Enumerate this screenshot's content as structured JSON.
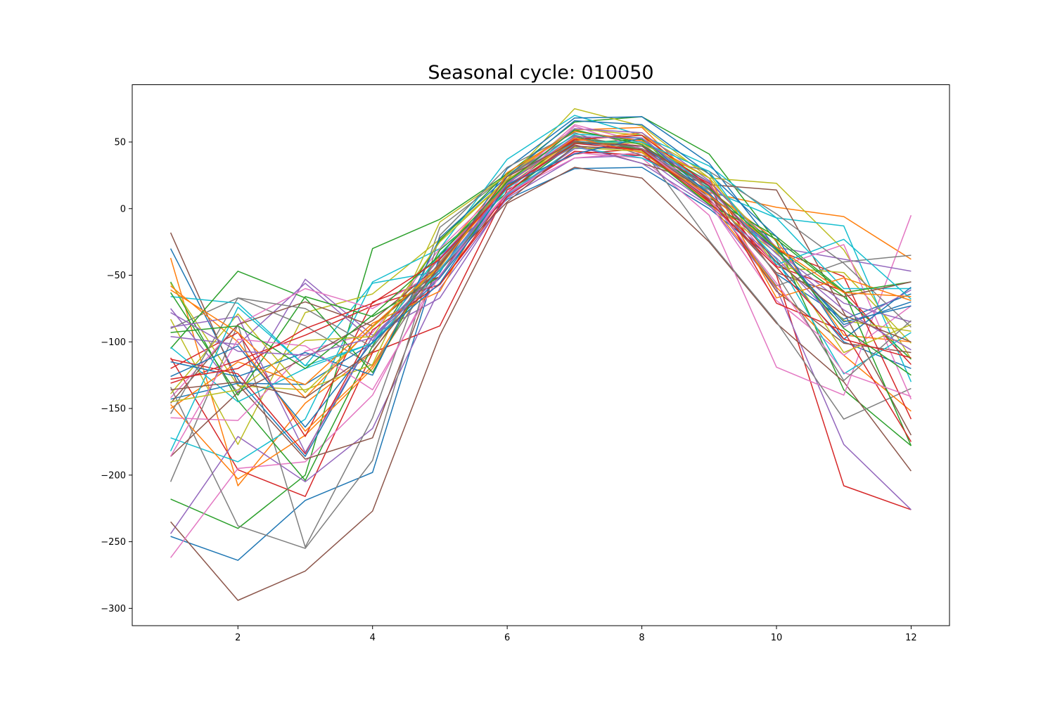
{
  "chart_data": {
    "type": "line",
    "title": "Seasonal cycle: 010050",
    "xlabel": "",
    "ylabel": "",
    "xlim": [
      0.43,
      12.57
    ],
    "ylim": [
      -313,
      93
    ],
    "x_ticks": [
      2,
      4,
      6,
      8,
      10,
      12
    ],
    "y_ticks": [
      50,
      0,
      -50,
      -100,
      -150,
      -200,
      -250,
      -300
    ],
    "x_tick_labels": [
      "2",
      "4",
      "6",
      "8",
      "10",
      "12"
    ],
    "y_tick_labels": [
      "50",
      "0",
      "−50",
      "−100",
      "−150",
      "−200",
      "−250",
      "−300"
    ],
    "grid": false,
    "legend": "none",
    "x": [
      1,
      2,
      3,
      4,
      5,
      6,
      7,
      8,
      9,
      10,
      11,
      12
    ],
    "colors": [
      "#1f77b4",
      "#ff7f0e",
      "#2ca02c",
      "#d62728",
      "#9467bd",
      "#8c564b",
      "#e377c2",
      "#7f7f7f",
      "#bcbd22",
      "#17becf"
    ],
    "series": [
      {
        "values": [
          -246,
          -264,
          -219,
          -198,
          -35,
          7,
          30,
          31,
          0,
          -40,
          -100,
          -120
        ]
      },
      {
        "values": [
          -37,
          -208,
          -146,
          -108,
          -35,
          24,
          59,
          61,
          12,
          1,
          -6,
          -38
        ]
      },
      {
        "values": [
          -218,
          -240,
          -200,
          -30,
          -8,
          26,
          65,
          69,
          41,
          -25,
          -136,
          -178
        ]
      },
      {
        "values": [
          -112,
          -196,
          -216,
          -108,
          -88,
          14,
          41,
          45,
          19,
          -50,
          -208,
          -226
        ]
      },
      {
        "values": [
          -244,
          -171,
          -205,
          -165,
          -60,
          8,
          38,
          40,
          3,
          -60,
          -177,
          -226
        ]
      },
      {
        "values": [
          -235,
          -294,
          -272,
          -227,
          -95,
          4,
          31,
          23,
          -25,
          -86,
          -130,
          -197
        ]
      },
      {
        "values": [
          -262,
          -195,
          -190,
          -140,
          -45,
          10,
          42,
          38,
          -5,
          -119,
          -140,
          -5
        ]
      },
      {
        "values": [
          -205,
          -87,
          -254,
          -157,
          -14,
          25,
          55,
          45,
          -24,
          -85,
          -158,
          -135
        ]
      },
      {
        "values": [
          -83,
          -177,
          -78,
          -64,
          -23,
          22,
          75,
          62,
          23,
          19,
          -31,
          -113
        ]
      },
      {
        "values": [
          -172,
          -190,
          -158,
          -55,
          -30,
          37,
          70,
          55,
          32,
          -7,
          -13,
          -130
        ]
      },
      {
        "values": [
          -30,
          -128,
          -186,
          -96,
          -48,
          30,
          68,
          69,
          34,
          -30,
          -87,
          -70
        ]
      },
      {
        "values": [
          -147,
          -203,
          -170,
          -120,
          -41,
          17,
          52,
          55,
          5,
          -59,
          -110,
          -152
        ]
      },
      {
        "values": [
          -55,
          -144,
          -204,
          -103,
          -24,
          27,
          58,
          50,
          20,
          -30,
          -66,
          -113
        ]
      },
      {
        "values": [
          -120,
          -93,
          -171,
          -70,
          -51,
          22,
          52,
          47,
          6,
          -31,
          -51,
          -158
        ]
      },
      {
        "values": [
          -75,
          -138,
          -53,
          -95,
          -67,
          10,
          45,
          47,
          20,
          -29,
          -38,
          -47
        ]
      },
      {
        "values": [
          -18,
          -132,
          -188,
          -172,
          -38,
          16,
          48,
          34,
          18,
          14,
          -78,
          -170
        ]
      },
      {
        "values": [
          -157,
          -159,
          -107,
          -93,
          -30,
          19,
          63,
          50,
          4,
          -69,
          -110,
          -73
        ]
      },
      {
        "values": [
          -90,
          -67,
          -88,
          -118,
          -44,
          24,
          55,
          45,
          8,
          -58,
          -40,
          -35
        ]
      },
      {
        "values": [
          -56,
          -133,
          -136,
          -117,
          -10,
          25,
          60,
          55,
          26,
          -44,
          -48,
          -101
        ]
      },
      {
        "values": [
          -66,
          -71,
          -118,
          -56,
          -47,
          11,
          46,
          38,
          14,
          -7,
          -60,
          -60
        ]
      },
      {
        "values": [
          -143,
          -131,
          -132,
          -101,
          -52,
          12,
          49,
          47,
          12,
          -49,
          -83,
          -64
        ]
      },
      {
        "values": [
          -58,
          -100,
          -167,
          -118,
          -34,
          15,
          51,
          57,
          14,
          -24,
          -95,
          -100
        ]
      },
      {
        "values": [
          -105,
          -47,
          -67,
          -123,
          -31,
          12,
          49,
          52,
          8,
          -21,
          -62,
          -178
        ]
      },
      {
        "values": [
          -131,
          -114,
          -95,
          -73,
          -57,
          9,
          43,
          40,
          10,
          -43,
          -62,
          -117
        ]
      },
      {
        "values": [
          -96,
          -102,
          -56,
          -99,
          -37,
          18,
          60,
          57,
          21,
          -32,
          -71,
          -85
        ]
      },
      {
        "values": [
          -186,
          -138,
          -112,
          -84,
          -42,
          21,
          51,
          44,
          11,
          -62,
          -101,
          -108
        ]
      },
      {
        "values": [
          -142,
          -87,
          -60,
          -75,
          -46,
          12,
          38,
          42,
          18,
          -44,
          -27,
          -143
        ]
      },
      {
        "values": [
          -134,
          -238,
          -255,
          -189,
          -20,
          31,
          57,
          40,
          28,
          -4,
          -41,
          -89
        ]
      },
      {
        "values": [
          -139,
          -79,
          -138,
          -89,
          -44,
          22,
          46,
          43,
          4,
          -33,
          -84,
          -92
        ]
      },
      {
        "values": [
          -104,
          -145,
          -120,
          -101,
          -34,
          19,
          56,
          53,
          16,
          -38,
          -124,
          -93
        ]
      },
      {
        "values": [
          -115,
          -126,
          -108,
          -125,
          -22,
          24,
          66,
          63,
          26,
          -21,
          -98,
          -59
        ]
      },
      {
        "values": [
          -150,
          -115,
          -132,
          -86,
          -62,
          27,
          58,
          51,
          23,
          -67,
          -52,
          -69
        ]
      },
      {
        "values": [
          -63,
          -140,
          -66,
          -81,
          -51,
          16,
          54,
          44,
          3,
          -23,
          -63,
          -55
        ]
      },
      {
        "values": [
          -113,
          -124,
          -184,
          -91,
          -57,
          12,
          52,
          55,
          17,
          -71,
          -92,
          -175
        ]
      },
      {
        "values": [
          -89,
          -81,
          -183,
          -96,
          -46,
          18,
          47,
          34,
          2,
          -37,
          -89,
          -61
        ]
      },
      {
        "values": [
          -146,
          -87,
          -70,
          -88,
          -46,
          5,
          47,
          44,
          7,
          -48,
          -66,
          -55
        ]
      },
      {
        "values": [
          -186,
          -98,
          -103,
          -136,
          -50,
          12,
          62,
          45,
          8,
          -56,
          -123,
          -141
        ]
      },
      {
        "values": [
          -154,
          -67,
          -75,
          -104,
          -40,
          19,
          53,
          45,
          12,
          -49,
          -129,
          -84
        ]
      },
      {
        "values": [
          -145,
          -136,
          -99,
          -96,
          -25,
          22,
          50,
          49,
          23,
          -32,
          -108,
          -87
        ]
      },
      {
        "values": [
          -182,
          -74,
          -118,
          -101,
          -46,
          15,
          50,
          50,
          28,
          -42,
          -23,
          -68
        ]
      },
      {
        "values": [
          -126,
          -103,
          -164,
          -100,
          -56,
          18,
          41,
          53,
          11,
          -31,
          -85,
          -73
        ]
      },
      {
        "values": [
          -61,
          -93,
          -142,
          -88,
          -43,
          19,
          53,
          42,
          10,
          -29,
          -63,
          -66
        ]
      },
      {
        "values": [
          -93,
          -88,
          -120,
          -80,
          -35,
          20,
          59,
          48,
          15,
          -30,
          -90,
          -125
        ]
      },
      {
        "values": [
          -128,
          -120,
          -90,
          -71,
          -38,
          16,
          49,
          44,
          5,
          -44,
          -98,
          -112
        ]
      },
      {
        "values": [
          -78,
          -107,
          -110,
          -97,
          -51,
          19,
          54,
          53,
          14,
          -34,
          -76,
          -106
        ]
      },
      {
        "values": [
          -136,
          -130,
          -142,
          -107,
          -43,
          24,
          50,
          47,
          17,
          -40,
          -80,
          -100
        ]
      }
    ]
  }
}
